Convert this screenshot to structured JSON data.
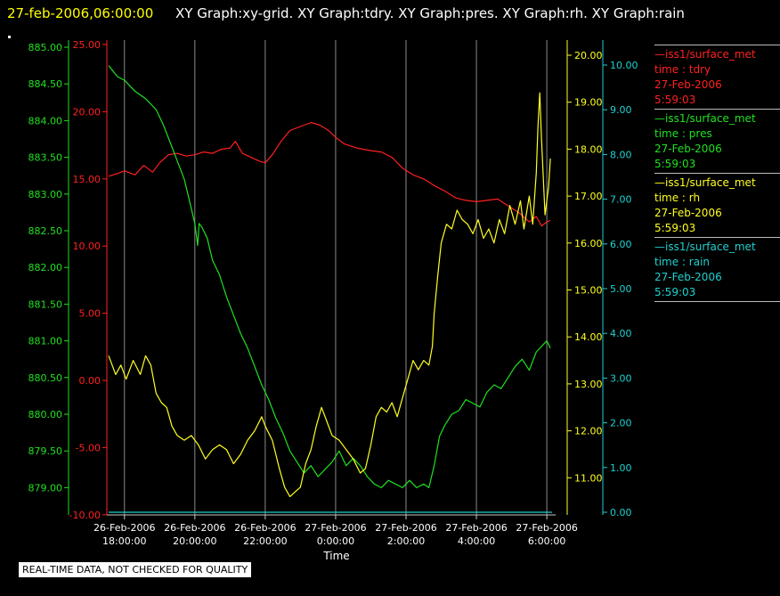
{
  "header": {
    "timestamp": "27-feb-2006,06:00:00",
    "graphs": "XY Graph:xy-grid.  XY Graph:tdry.  XY Graph:pres.  XY Graph:rh.  XY Graph:rain"
  },
  "note": "REAL-TIME DATA, NOT CHECKED FOR QUALITY",
  "legend": [
    {
      "source": "—iss1/surface_met",
      "var": "time : tdry",
      "date": "27-Feb-2006",
      "time": "5:59:03",
      "color": "#ff2020"
    },
    {
      "source": "—iss1/surface_met",
      "var": "time : pres",
      "date": "27-Feb-2006",
      "time": "5:59:03",
      "color": "#20e020"
    },
    {
      "source": "—iss1/surface_met",
      "var": "time : rh",
      "date": "27-Feb-2006",
      "time": "5:59:03",
      "color": "#ffff20"
    },
    {
      "source": "—iss1/surface_met",
      "var": "time : rain",
      "date": "27-Feb-2006",
      "time": "5:59:03",
      "color": "#20d0d0"
    }
  ],
  "chart_data": {
    "type": "line",
    "xlabel": "Time",
    "xlim": [
      17.5,
      30.25
    ],
    "xticks": [
      {
        "value": 18,
        "date": "26-Feb-2006",
        "time": "18:00:00"
      },
      {
        "value": 20,
        "date": "26-Feb-2006",
        "time": "20:00:00"
      },
      {
        "value": 22,
        "date": "26-Feb-2006",
        "time": "22:00:00"
      },
      {
        "value": 24,
        "date": "27-Feb-2006",
        "time": "0:00:00"
      },
      {
        "value": 26,
        "date": "27-Feb-2006",
        "time": "2:00:00"
      },
      {
        "value": 28,
        "date": "27-Feb-2006",
        "time": "4:00:00"
      },
      {
        "value": 30,
        "date": "27-Feb-2006",
        "time": "6:00:00"
      }
    ],
    "grid": "vertical",
    "axes": {
      "pres": {
        "ticks": [
          "885.00",
          "884.50",
          "884.00",
          "883.50",
          "883.00",
          "882.50",
          "882.00",
          "881.50",
          "881.00",
          "880.50",
          "880.00",
          "879.50",
          "879.00"
        ],
        "range": [
          878.6,
          885.0
        ],
        "color": "#20e020"
      },
      "tdry": {
        "ticks": [
          "25.00",
          "20.00",
          "15.00",
          "10.00",
          "5.00",
          "0.00",
          "-5.00",
          "-10.00"
        ],
        "range": [
          -10,
          25
        ],
        "color": "#ff2020"
      },
      "rh": {
        "ticks": [
          "20.00",
          "19.00",
          "18.00",
          "17.00",
          "16.00",
          "15.00",
          "14.00",
          "13.00",
          "12.00",
          "11.00"
        ],
        "range": [
          10.2,
          20.2
        ],
        "color": "#ffff20"
      },
      "rain": {
        "ticks": [
          "10.00",
          "9.00",
          "8.00",
          "7.00",
          "6.00",
          "5.00",
          "4.00",
          "3.00",
          "2.00",
          "1.00",
          "0.00"
        ],
        "range": [
          0,
          10.4
        ],
        "color": "#20d0d0"
      }
    },
    "series": [
      {
        "name": "tdry",
        "axis": "tdry",
        "color": "#ff2020",
        "points": [
          [
            17.55,
            15.2
          ],
          [
            17.8,
            15.4
          ],
          [
            18.0,
            15.6
          ],
          [
            18.3,
            15.3
          ],
          [
            18.55,
            16.0
          ],
          [
            18.8,
            15.5
          ],
          [
            19.0,
            16.2
          ],
          [
            19.25,
            16.8
          ],
          [
            19.5,
            16.9
          ],
          [
            19.75,
            16.7
          ],
          [
            20.0,
            16.8
          ],
          [
            20.25,
            17.0
          ],
          [
            20.5,
            16.9
          ],
          [
            20.75,
            17.2
          ],
          [
            21.0,
            17.3
          ],
          [
            21.15,
            17.8
          ],
          [
            21.35,
            16.9
          ],
          [
            21.6,
            16.6
          ],
          [
            21.85,
            16.3
          ],
          [
            22.0,
            16.2
          ],
          [
            22.2,
            16.8
          ],
          [
            22.45,
            17.8
          ],
          [
            22.7,
            18.6
          ],
          [
            23.0,
            18.9
          ],
          [
            23.3,
            19.2
          ],
          [
            23.55,
            19.0
          ],
          [
            23.8,
            18.6
          ],
          [
            24.0,
            18.1
          ],
          [
            24.25,
            17.6
          ],
          [
            24.6,
            17.3
          ],
          [
            25.0,
            17.1
          ],
          [
            25.3,
            17.0
          ],
          [
            25.6,
            16.6
          ],
          [
            25.9,
            15.8
          ],
          [
            26.2,
            15.3
          ],
          [
            26.5,
            15.0
          ],
          [
            26.8,
            14.5
          ],
          [
            27.1,
            14.1
          ],
          [
            27.4,
            13.6
          ],
          [
            27.7,
            13.4
          ],
          [
            28.0,
            13.3
          ],
          [
            28.3,
            13.4
          ],
          [
            28.6,
            13.5
          ],
          [
            28.9,
            13.0
          ],
          [
            29.2,
            12.5
          ],
          [
            29.5,
            11.8
          ],
          [
            29.7,
            12.2
          ],
          [
            29.85,
            11.5
          ],
          [
            30.0,
            11.8
          ],
          [
            30.1,
            11.9
          ]
        ]
      },
      {
        "name": "pres",
        "axis": "pres",
        "color": "#20e020",
        "points": [
          [
            17.55,
            884.75
          ],
          [
            17.8,
            884.6
          ],
          [
            18.0,
            884.55
          ],
          [
            18.3,
            884.4
          ],
          [
            18.6,
            884.3
          ],
          [
            18.9,
            884.15
          ],
          [
            19.1,
            883.95
          ],
          [
            19.3,
            883.7
          ],
          [
            19.5,
            883.45
          ],
          [
            19.7,
            883.2
          ],
          [
            19.9,
            882.8
          ],
          [
            20.0,
            882.6
          ],
          [
            20.08,
            882.3
          ],
          [
            20.12,
            882.6
          ],
          [
            20.2,
            882.55
          ],
          [
            20.35,
            882.4
          ],
          [
            20.5,
            882.1
          ],
          [
            20.7,
            881.9
          ],
          [
            20.9,
            881.6
          ],
          [
            21.1,
            881.35
          ],
          [
            21.3,
            881.1
          ],
          [
            21.5,
            880.9
          ],
          [
            21.7,
            880.65
          ],
          [
            21.9,
            880.4
          ],
          [
            22.1,
            880.2
          ],
          [
            22.3,
            879.95
          ],
          [
            22.5,
            879.75
          ],
          [
            22.7,
            879.5
          ],
          [
            22.9,
            879.35
          ],
          [
            23.1,
            879.2
          ],
          [
            23.3,
            879.3
          ],
          [
            23.5,
            879.15
          ],
          [
            23.7,
            879.25
          ],
          [
            23.9,
            879.35
          ],
          [
            24.1,
            879.5
          ],
          [
            24.3,
            879.3
          ],
          [
            24.5,
            879.4
          ],
          [
            24.7,
            879.3
          ],
          [
            24.9,
            879.15
          ],
          [
            25.1,
            879.05
          ],
          [
            25.3,
            879.0
          ],
          [
            25.5,
            879.1
          ],
          [
            25.7,
            879.05
          ],
          [
            25.9,
            879.0
          ],
          [
            26.1,
            879.1
          ],
          [
            26.3,
            879.0
          ],
          [
            26.5,
            879.05
          ],
          [
            26.65,
            879.0
          ],
          [
            26.8,
            879.3
          ],
          [
            26.95,
            879.7
          ],
          [
            27.1,
            879.85
          ],
          [
            27.3,
            880.0
          ],
          [
            27.5,
            880.05
          ],
          [
            27.7,
            880.2
          ],
          [
            27.9,
            880.15
          ],
          [
            28.1,
            880.1
          ],
          [
            28.3,
            880.3
          ],
          [
            28.5,
            880.4
          ],
          [
            28.7,
            880.35
          ],
          [
            28.9,
            880.5
          ],
          [
            29.1,
            880.65
          ],
          [
            29.3,
            880.75
          ],
          [
            29.5,
            880.6
          ],
          [
            29.7,
            880.85
          ],
          [
            29.9,
            880.95
          ],
          [
            30.0,
            881.0
          ],
          [
            30.1,
            880.9
          ]
        ]
      },
      {
        "name": "rh",
        "axis": "rh",
        "color": "#ffff20",
        "points": [
          [
            17.55,
            13.6
          ],
          [
            17.75,
            13.2
          ],
          [
            17.9,
            13.4
          ],
          [
            18.05,
            13.1
          ],
          [
            18.25,
            13.5
          ],
          [
            18.45,
            13.2
          ],
          [
            18.6,
            13.6
          ],
          [
            18.75,
            13.4
          ],
          [
            18.9,
            12.8
          ],
          [
            19.05,
            12.6
          ],
          [
            19.2,
            12.5
          ],
          [
            19.35,
            12.1
          ],
          [
            19.5,
            11.9
          ],
          [
            19.7,
            11.8
          ],
          [
            19.9,
            11.9
          ],
          [
            20.1,
            11.7
          ],
          [
            20.3,
            11.4
          ],
          [
            20.5,
            11.6
          ],
          [
            20.7,
            11.7
          ],
          [
            20.9,
            11.6
          ],
          [
            21.1,
            11.3
          ],
          [
            21.3,
            11.5
          ],
          [
            21.5,
            11.8
          ],
          [
            21.7,
            12.0
          ],
          [
            21.9,
            12.3
          ],
          [
            22.0,
            12.1
          ],
          [
            22.2,
            11.8
          ],
          [
            22.4,
            11.2
          ],
          [
            22.55,
            10.8
          ],
          [
            22.7,
            10.6
          ],
          [
            22.85,
            10.7
          ],
          [
            23.0,
            10.8
          ],
          [
            23.15,
            11.3
          ],
          [
            23.3,
            11.6
          ],
          [
            23.45,
            12.1
          ],
          [
            23.6,
            12.5
          ],
          [
            23.75,
            12.2
          ],
          [
            23.9,
            11.9
          ],
          [
            24.1,
            11.8
          ],
          [
            24.3,
            11.6
          ],
          [
            24.5,
            11.4
          ],
          [
            24.7,
            11.1
          ],
          [
            24.85,
            11.2
          ],
          [
            25.0,
            11.7
          ],
          [
            25.15,
            12.3
          ],
          [
            25.3,
            12.5
          ],
          [
            25.45,
            12.4
          ],
          [
            25.6,
            12.6
          ],
          [
            25.75,
            12.3
          ],
          [
            25.9,
            12.7
          ],
          [
            26.05,
            13.1
          ],
          [
            26.2,
            13.5
          ],
          [
            26.35,
            13.3
          ],
          [
            26.5,
            13.5
          ],
          [
            26.65,
            13.4
          ],
          [
            26.75,
            13.8
          ],
          [
            26.8,
            14.5
          ],
          [
            26.9,
            15.3
          ],
          [
            27.0,
            16.0
          ],
          [
            27.15,
            16.4
          ],
          [
            27.3,
            16.3
          ],
          [
            27.45,
            16.7
          ],
          [
            27.6,
            16.5
          ],
          [
            27.75,
            16.4
          ],
          [
            27.9,
            16.2
          ],
          [
            28.05,
            16.5
          ],
          [
            28.2,
            16.1
          ],
          [
            28.35,
            16.3
          ],
          [
            28.5,
            16.0
          ],
          [
            28.65,
            16.5
          ],
          [
            28.8,
            16.2
          ],
          [
            28.95,
            16.8
          ],
          [
            29.1,
            16.4
          ],
          [
            29.25,
            16.9
          ],
          [
            29.35,
            16.3
          ],
          [
            29.5,
            17.0
          ],
          [
            29.6,
            16.4
          ],
          [
            29.7,
            17.5
          ],
          [
            29.75,
            18.5
          ],
          [
            29.8,
            19.2
          ],
          [
            29.85,
            18.2
          ],
          [
            29.95,
            16.6
          ],
          [
            30.05,
            17.2
          ],
          [
            30.1,
            17.8
          ]
        ]
      },
      {
        "name": "rain",
        "axis": "rain",
        "color": "#20d0d0",
        "points": [
          [
            17.55,
            0.0
          ],
          [
            30.15,
            0.0
          ]
        ]
      }
    ]
  }
}
